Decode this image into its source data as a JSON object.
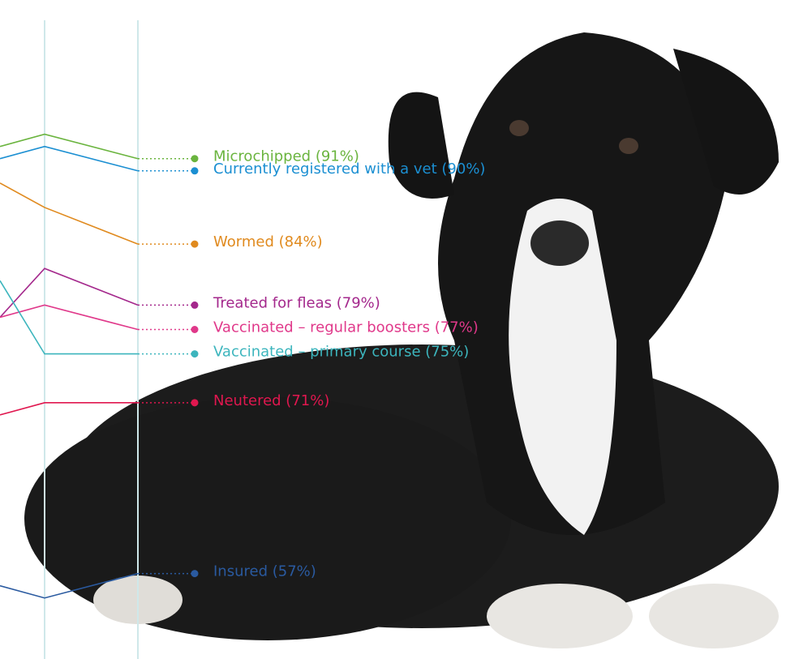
{
  "chart_data": {
    "type": "line",
    "categories": [
      null,
      null,
      null
    ],
    "ylim": [
      50,
      104
    ],
    "series": [
      {
        "name": "Microchipped (91%)",
        "color": "#6ab43e",
        "values": [
          92,
          93,
          91
        ]
      },
      {
        "name": "Currently registered with a vet (90%)",
        "color": "#1b8fd2",
        "values": [
          91,
          92,
          90
        ]
      },
      {
        "name": "Wormed (84%)",
        "color": "#e08a1e",
        "values": [
          89,
          87,
          84
        ]
      },
      {
        "name": "Treated for fleas (79%)",
        "color": "#a4288c",
        "values": [
          78,
          82,
          79
        ]
      },
      {
        "name": "Vaccinated – regular boosters (77%)",
        "color": "#e0388a",
        "values": [
          78,
          79,
          77
        ]
      },
      {
        "name": "Vaccinated – primary course (75%)",
        "color": "#3cb5bd",
        "values": [
          81,
          75,
          75
        ]
      },
      {
        "name": "Neutered (71%)",
        "color": "#e0174f",
        "values": [
          70,
          71,
          71
        ]
      },
      {
        "name": "Insured (57%)",
        "color": "#2a5aa0",
        "values": [
          56,
          55,
          57
        ]
      }
    ]
  }
}
